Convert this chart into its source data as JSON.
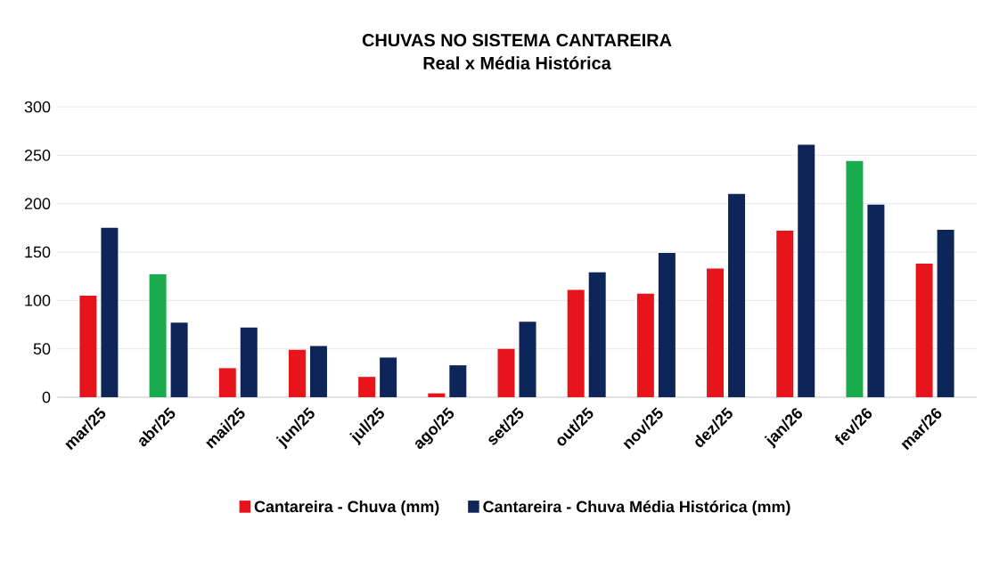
{
  "chart_data": {
    "type": "bar",
    "title": "CHUVAS NO SISTEMA CANTAREIRA",
    "subtitle": "Real x Média Histórica",
    "categories": [
      "mar/25",
      "abr/25",
      "mai/25",
      "jun/25",
      "jul/25",
      "ago/25",
      "set/25",
      "out/25",
      "nov/25",
      "dez/25",
      "jan/26",
      "fev/26",
      "mar/26"
    ],
    "series": [
      {
        "name": "Cantareira - Chuva (mm)",
        "color": "#e8141b",
        "colors": [
          "#e8141b",
          "#1aab4f",
          "#e8141b",
          "#e8141b",
          "#e8141b",
          "#e8141b",
          "#e8141b",
          "#e8141b",
          "#e8141b",
          "#e8141b",
          "#e8141b",
          "#1aab4f",
          "#e8141b"
        ],
        "values": [
          105,
          127,
          30,
          49,
          21,
          4,
          50,
          111,
          107,
          133,
          172,
          244,
          138
        ]
      },
      {
        "name": "Cantareira - Chuva Média Histórica (mm)",
        "color": "#0d2559",
        "values": [
          175,
          77,
          72,
          53,
          41,
          33,
          78,
          129,
          149,
          210,
          261,
          199,
          173
        ]
      }
    ],
    "ylim": [
      0,
      300
    ],
    "yticks": [
      0,
      50,
      100,
      150,
      200,
      250,
      300
    ],
    "grid": "y",
    "legend": "bottom"
  }
}
